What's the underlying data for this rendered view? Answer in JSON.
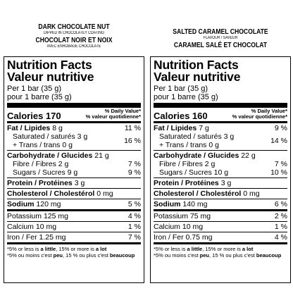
{
  "left": {
    "name_en": "DARK CHOCOLATE NUT",
    "desc_en": "DIPPED IN CHOCOLATEY COATING",
    "name_fr": "CHOCOLAT NOIR ET NOIX",
    "desc_fr": "AVEC ENROBAGE CHOCOLATE",
    "calories": "Calories 170",
    "fat_amount": "8 g",
    "fat_pct": "11 %",
    "sat_amount": "3 g",
    "trans_amount": "0 g",
    "sat_trans_pct": "16 %",
    "carb_amount": "21 g",
    "fibre_amount": "2 g",
    "fibre_pct": "7 %",
    "sugars_amount": "9 g",
    "sugars_pct": "9 %",
    "protein_amount": "3 g",
    "chol_amount": "0 mg",
    "sodium_amount": "120 mg",
    "sodium_pct": "5 %",
    "potassium_amount": "125 mg",
    "potassium_pct": "4 %",
    "calcium_amount": "10 mg",
    "calcium_pct": "1 %",
    "iron_amount": "1.25 mg",
    "iron_pct": "7 %"
  },
  "right": {
    "name_en": "SALTED CARAMEL CHOCOLATE",
    "desc_en": "FLAVOUR / SAVEUR",
    "name_fr": "CARAMEL SALÉ ET CHOCOLAT",
    "calories": "Calories 160",
    "fat_amount": "7 g",
    "fat_pct": "9 %",
    "sat_amount": "3 g",
    "trans_amount": "0 g",
    "sat_trans_pct": "14 %",
    "carb_amount": "22 g",
    "fibre_amount": "2 g",
    "fibre_pct": "7 %",
    "sugars_amount": "10 g",
    "sugars_pct": "10 %",
    "protein_amount": "3 g",
    "chol_amount": "0 mg",
    "sodium_amount": "140 mg",
    "sodium_pct": "6 %",
    "potassium_amount": "75 mg",
    "potassium_pct": "2 %",
    "calcium_amount": "10 mg",
    "calcium_pct": "1 %",
    "iron_amount": "0.75 mg",
    "iron_pct": "4 %"
  },
  "labels": {
    "title_en": "Nutrition Facts",
    "title_fr": "Valeur nutritive",
    "serving_en": "Per 1 bar (35 g)",
    "serving_fr": "pour 1 barre (35 g)",
    "dv_en": "% Daily Value*",
    "dv_fr": "% valeur quotidienne*",
    "fat": "Fat / Lipides",
    "saturated": "Saturated / saturés",
    "trans": "+ Trans / trans",
    "carb": "Carbohydrate / Glucides",
    "fibre": "Fibre / Fibres",
    "sugars": "Sugars / Sucres",
    "protein": "Protein / Protéines",
    "cholesterol": "Cholesterol / Cholestérol",
    "sodium": "Sodium",
    "potassium": "Potassium",
    "calcium": "Calcium",
    "iron": "Iron / Fer",
    "foot_en_1": "*5% or less is ",
    "foot_en_2": "a little",
    "foot_en_3": ", 15% or more is ",
    "foot_en_4": "a lot",
    "foot_fr_1": "*5% ou moins c'est ",
    "foot_fr_2": "peu",
    "foot_fr_3": ", 15 % ou plus c'est ",
    "foot_fr_4": "beaucoup"
  }
}
